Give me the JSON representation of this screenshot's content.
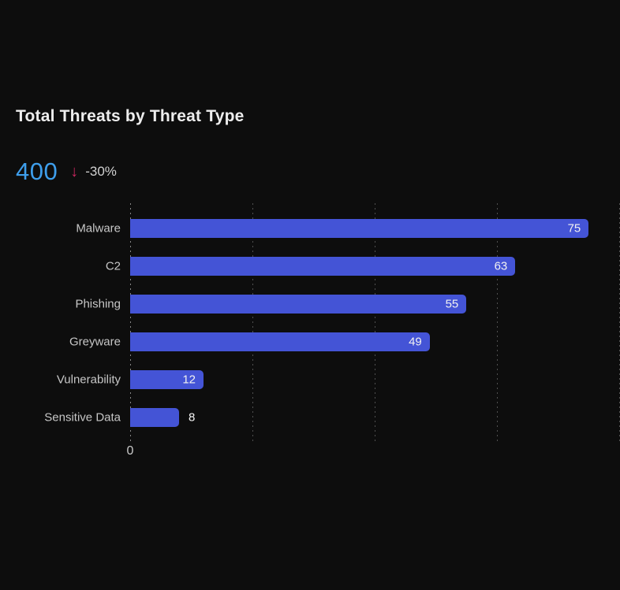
{
  "card": {
    "title": "Total Threats by Threat Type",
    "stat": {
      "value": "400",
      "trend_icon_glyph": "↓",
      "trend_delta": "-30%"
    }
  },
  "colors": {
    "background": "#0D0D0D",
    "bar": "#4454D6",
    "stat_value_blue": "#3E9EEB",
    "trend_pink": "#C7265E",
    "title_text": "#EDEDED",
    "category_label": "#C7C7C7",
    "value_label": "#F2F2F2"
  },
  "chart_data": {
    "type": "bar",
    "orientation": "horizontal",
    "title": "Total Threats by Threat Type",
    "categories": [
      "Malware",
      "C2",
      "Phishing",
      "Greyware",
      "Vulnerability",
      "Sensitive Data"
    ],
    "values": [
      75,
      63,
      55,
      49,
      12,
      8
    ],
    "xlabel": "",
    "ylabel": "",
    "xlim": [
      0,
      80
    ],
    "gridline_values": [
      20,
      40,
      60,
      80
    ],
    "grid": "dotted-vertical",
    "legend": "none",
    "x_tick_labels_visible": [
      "0"
    ],
    "value_labels": "at-bar-end"
  }
}
